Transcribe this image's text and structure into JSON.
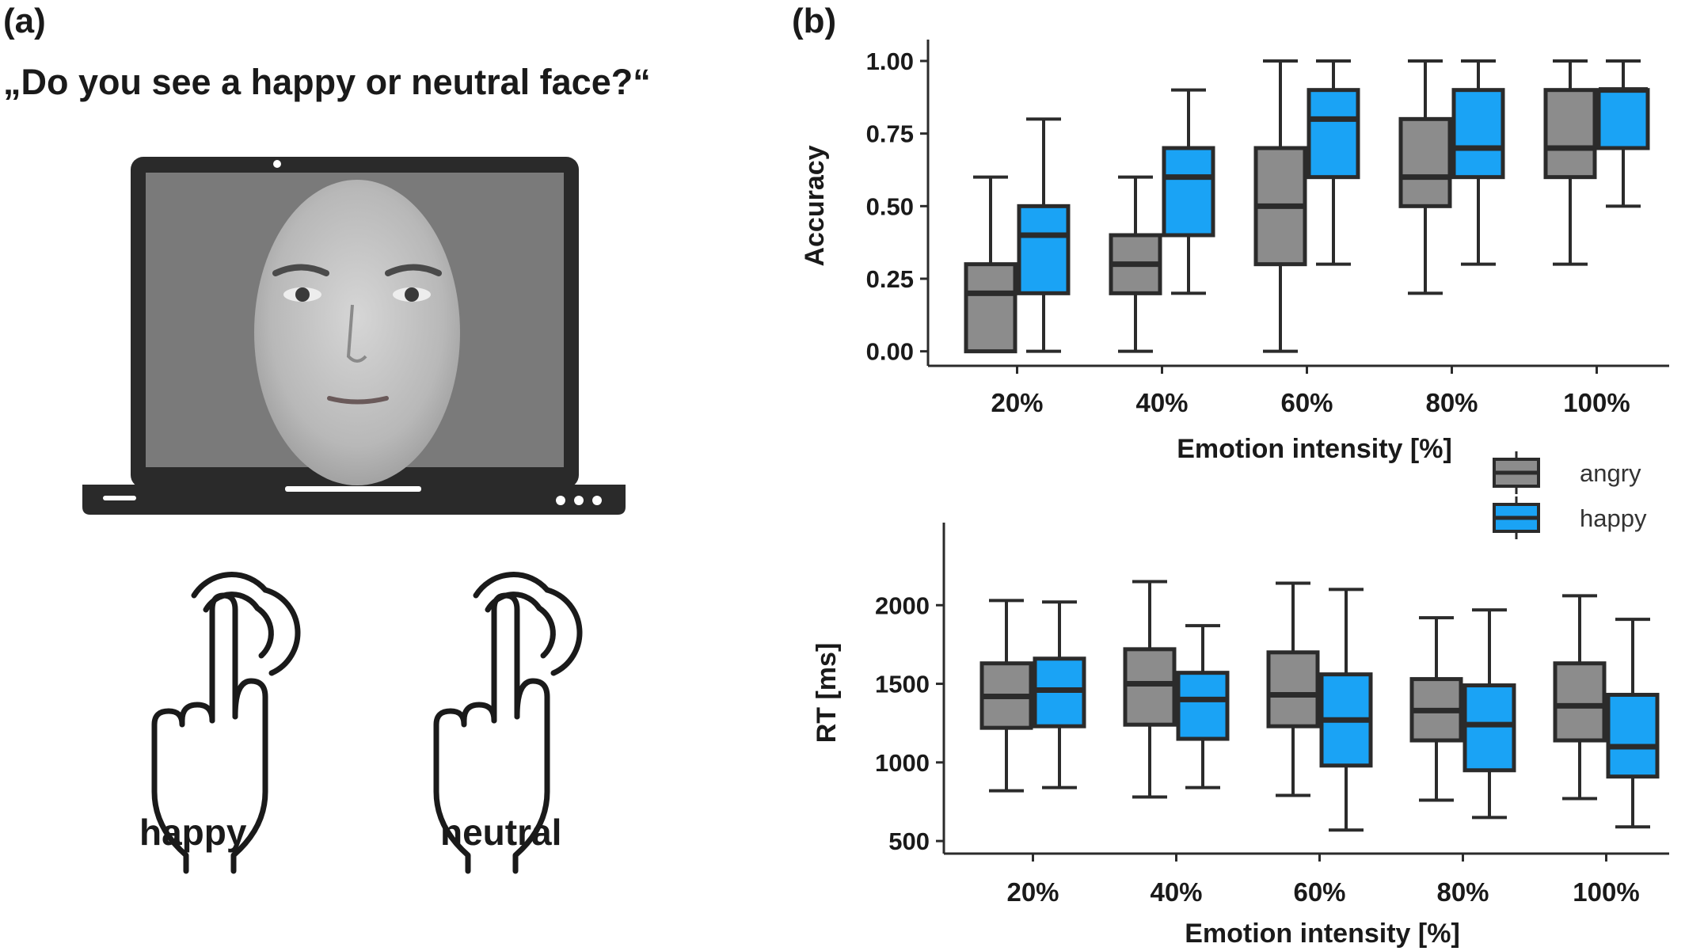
{
  "panel_a": {
    "label": "(a)",
    "question": "„Do you see a happy or neutral face?“",
    "buttons": [
      {
        "label": "happy",
        "icon": "tap-hand-icon"
      },
      {
        "label": "neutral",
        "icon": "tap-hand-icon"
      }
    ]
  },
  "panel_b": {
    "label": "(b)"
  },
  "colors": {
    "angry": "#8c8c8c",
    "happy": "#1aa3f5",
    "stroke": "#2b2b2b"
  },
  "chart_data": [
    {
      "type": "boxplot",
      "ylabel": "Accuracy",
      "xlabel": "Emotion intensity [%]",
      "categories": [
        "20%",
        "40%",
        "60%",
        "80%",
        "100%"
      ],
      "yticks": [
        "0.00",
        "0.25",
        "0.50",
        "0.75",
        "1.00"
      ],
      "ytick_values": [
        0,
        0.25,
        0.5,
        0.75,
        1.0
      ],
      "ylim": [
        -0.05,
        1.06
      ],
      "legend": {
        "placement": "bottom-right",
        "entries": [
          "angry",
          "happy"
        ]
      },
      "series": [
        {
          "name": "angry",
          "boxes": [
            {
              "min": 0.0,
              "q1": 0.0,
              "median": 0.2,
              "q3": 0.3,
              "max": 0.6
            },
            {
              "min": 0.0,
              "q1": 0.2,
              "median": 0.3,
              "q3": 0.4,
              "max": 0.6
            },
            {
              "min": 0.0,
              "q1": 0.3,
              "median": 0.5,
              "q3": 0.7,
              "max": 1.0
            },
            {
              "min": 0.2,
              "q1": 0.5,
              "median": 0.6,
              "q3": 0.8,
              "max": 1.0
            },
            {
              "min": 0.3,
              "q1": 0.6,
              "median": 0.7,
              "q3": 0.9,
              "max": 1.0
            }
          ]
        },
        {
          "name": "happy",
          "boxes": [
            {
              "min": 0.0,
              "q1": 0.2,
              "median": 0.4,
              "q3": 0.5,
              "max": 0.8
            },
            {
              "min": 0.2,
              "q1": 0.4,
              "median": 0.6,
              "q3": 0.7,
              "max": 0.9
            },
            {
              "min": 0.3,
              "q1": 0.6,
              "median": 0.8,
              "q3": 0.9,
              "max": 1.0
            },
            {
              "min": 0.3,
              "q1": 0.6,
              "median": 0.7,
              "q3": 0.9,
              "max": 1.0
            },
            {
              "min": 0.5,
              "q1": 0.7,
              "median": 0.9,
              "q3": 0.9,
              "max": 1.0
            }
          ]
        }
      ]
    },
    {
      "type": "boxplot",
      "ylabel": "RT [ms]",
      "xlabel": "Emotion intensity [%]",
      "categories": [
        "20%",
        "40%",
        "60%",
        "80%",
        "100%"
      ],
      "yticks": [
        "500",
        "1000",
        "1500",
        "2000"
      ],
      "ytick_values": [
        500,
        1000,
        1500,
        2000
      ],
      "ylim": [
        420,
        2500
      ],
      "series": [
        {
          "name": "angry",
          "boxes": [
            {
              "min": 820,
              "q1": 1220,
              "median": 1420,
              "q3": 1630,
              "max": 2030
            },
            {
              "min": 780,
              "q1": 1240,
              "median": 1500,
              "q3": 1720,
              "max": 2150
            },
            {
              "min": 790,
              "q1": 1230,
              "median": 1430,
              "q3": 1700,
              "max": 2140
            },
            {
              "min": 760,
              "q1": 1140,
              "median": 1330,
              "q3": 1530,
              "max": 1920
            },
            {
              "min": 770,
              "q1": 1140,
              "median": 1360,
              "q3": 1630,
              "max": 2060
            }
          ]
        },
        {
          "name": "happy",
          "boxes": [
            {
              "min": 840,
              "q1": 1230,
              "median": 1460,
              "q3": 1660,
              "max": 2020
            },
            {
              "min": 840,
              "q1": 1150,
              "median": 1400,
              "q3": 1570,
              "max": 1870
            },
            {
              "min": 570,
              "q1": 980,
              "median": 1270,
              "q3": 1560,
              "max": 2100
            },
            {
              "min": 650,
              "q1": 950,
              "median": 1240,
              "q3": 1490,
              "max": 1970
            },
            {
              "min": 590,
              "q1": 910,
              "median": 1100,
              "q3": 1430,
              "max": 1910
            }
          ]
        }
      ]
    }
  ]
}
